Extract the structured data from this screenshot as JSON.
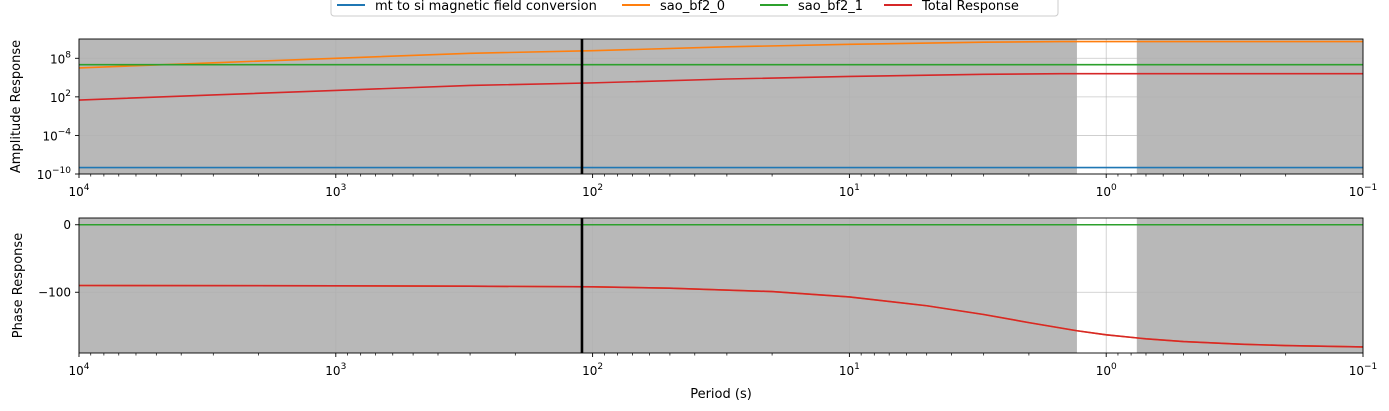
{
  "chart_data": [
    {
      "type": "line",
      "ylabel": "Amplitude Response",
      "xscale": "log",
      "yscale": "log",
      "x_reversed": true,
      "xlim": [
        10000,
        0.1
      ],
      "ylim": [
        1e-10,
        100000000000.0
      ],
      "grid": true,
      "x_ticks": [
        {
          "value": 10000,
          "base": "10",
          "exp": "4"
        },
        {
          "value": 1000,
          "base": "10",
          "exp": "3"
        },
        {
          "value": 100,
          "base": "10",
          "exp": "2"
        },
        {
          "value": 10,
          "base": "10",
          "exp": "1"
        },
        {
          "value": 1,
          "base": "10",
          "exp": "0"
        },
        {
          "value": 0.1,
          "base": "10",
          "exp": "−1"
        }
      ],
      "y_ticks": [
        {
          "value": 1e-10,
          "base": "10",
          "exp": "−10"
        },
        {
          "value": 0.0001,
          "base": "10",
          "exp": "−4"
        },
        {
          "value": 100,
          "base": "10",
          "exp": "2"
        },
        {
          "value": 100000000.0,
          "base": "10",
          "exp": "8"
        }
      ],
      "shaded_x_ranges": [
        [
          10000,
          1.3
        ],
        [
          0.76,
          0.1
        ]
      ],
      "vline_x": 110,
      "series": [
        {
          "name": "mt to si magnetic field conversion",
          "color": "#1f77b4",
          "x": [
            10000,
            0.1
          ],
          "y": [
            1e-09,
            1e-09
          ]
        },
        {
          "name": "sao_bf2_0",
          "color": "#ff7f0e",
          "x": [
            10000,
            3000,
            1000,
            300,
            100,
            30,
            10,
            3,
            1.5,
            1,
            0.5,
            0.1
          ],
          "y": [
            3200000.0,
            20000000.0,
            100000000.0,
            600000000.0,
            1500000000.0,
            6000000000.0,
            15000000000.0,
            32000000000.0,
            40000000000.0,
            40000000000.0,
            40000000000.0,
            40000000000.0
          ]
        },
        {
          "name": "sao_bf2_1",
          "color": "#2ca02c",
          "x": [
            10000,
            0.1
          ],
          "y": [
            10000000.0,
            10000000.0
          ]
        },
        {
          "name": "Total Response",
          "color": "#d62728",
          "x": [
            10000,
            3000,
            1000,
            300,
            100,
            30,
            10,
            3,
            1.5,
            1,
            0.5,
            0.1
          ],
          "y": [
            32.0,
            200.0,
            1000.0,
            6000.0,
            15000.0,
            60000.0,
            150000.0,
            320000.0,
            400000.0,
            400000.0,
            400000.0,
            400000.0
          ]
        }
      ]
    },
    {
      "type": "line",
      "xlabel": "Period (s)",
      "ylabel": "Phase Response",
      "xscale": "log",
      "x_reversed": true,
      "xlim": [
        10000,
        0.1
      ],
      "ylim": [
        -190,
        10
      ],
      "grid": true,
      "x_ticks": [
        {
          "value": 10000,
          "base": "10",
          "exp": "4"
        },
        {
          "value": 1000,
          "base": "10",
          "exp": "3"
        },
        {
          "value": 100,
          "base": "10",
          "exp": "2"
        },
        {
          "value": 10,
          "base": "10",
          "exp": "1"
        },
        {
          "value": 1,
          "base": "10",
          "exp": "0"
        },
        {
          "value": 0.1,
          "base": "10",
          "exp": "−1"
        }
      ],
      "y_ticks": [
        {
          "value": 0,
          "label": "0"
        },
        {
          "value": -100,
          "label": "−100"
        }
      ],
      "shaded_x_ranges": [
        [
          10000,
          1.3
        ],
        [
          0.76,
          0.1
        ]
      ],
      "vline_x": 110,
      "series": [
        {
          "name": "mt to si magnetic field conversion",
          "color": "#1f77b4",
          "x": [
            10000,
            0.1
          ],
          "y": [
            0,
            0
          ]
        },
        {
          "name": "sao_bf2_0",
          "color": "#ff7f0e",
          "x": [
            10000,
            1000,
            300,
            100,
            50,
            20,
            10,
            5,
            3,
            2,
            1.3,
            1,
            0.7,
            0.5,
            0.3,
            0.2,
            0.1
          ],
          "y": [
            -90,
            -90.5,
            -91,
            -92,
            -94,
            -99,
            -107,
            -120,
            -133,
            -145,
            -157,
            -163,
            -169,
            -173,
            -177,
            -179,
            -181
          ]
        },
        {
          "name": "sao_bf2_1",
          "color": "#2ca02c",
          "x": [
            10000,
            0.1
          ],
          "y": [
            0,
            0
          ]
        },
        {
          "name": "Total Response",
          "color": "#d62728",
          "x": [
            10000,
            1000,
            300,
            100,
            50,
            20,
            10,
            5,
            3,
            2,
            1.3,
            1,
            0.7,
            0.5,
            0.3,
            0.2,
            0.1
          ],
          "y": [
            -90,
            -90.5,
            -91,
            -92,
            -94,
            -99,
            -107,
            -120,
            -133,
            -145,
            -157,
            -163,
            -169,
            -173,
            -177,
            -179,
            -181
          ]
        }
      ]
    }
  ],
  "legend": {
    "placement": "top-center",
    "entries": [
      {
        "label": "mt to si magnetic field conversion",
        "color": "#1f77b4"
      },
      {
        "label": "sao_bf2_0",
        "color": "#ff7f0e"
      },
      {
        "label": "sao_bf2_1",
        "color": "#2ca02c"
      },
      {
        "label": "Total Response",
        "color": "#d62728"
      }
    ]
  },
  "colors": {
    "shade": "#b8b8b8",
    "grid": "#b0b0b0",
    "vline": "#000000"
  }
}
